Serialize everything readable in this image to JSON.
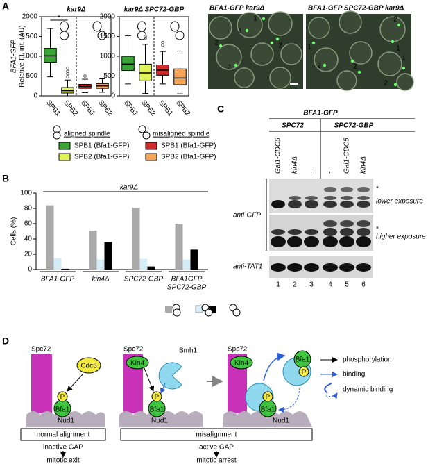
{
  "panel_labels": [
    "A",
    "B",
    "C",
    "D"
  ],
  "chart_data": [
    {
      "type": "box",
      "title": "kar9Δ",
      "y_label": [
        "BFA1-GFP",
        "Relative Fl. int. (AU)"
      ],
      "categories": [
        "SPB1",
        "SPB2",
        "SPB1",
        "SPB2"
      ],
      "colors": [
        "#3aa335",
        "#dff25a",
        "#d22b2b",
        "#f5a55a"
      ],
      "boxes": [
        {
          "whisker_low": 480,
          "q1": 850,
          "median": 1010,
          "q3": 1200,
          "whisker_high": 1700,
          "outliers": []
        },
        {
          "whisker_low": 0,
          "q1": 70,
          "median": 130,
          "q3": 210,
          "whisker_high": 400,
          "outliers": [
            480,
            560,
            620,
            700
          ]
        },
        {
          "whisker_low": 80,
          "q1": 190,
          "median": 240,
          "q3": 290,
          "whisker_high": 420,
          "outliers": [
            500
          ]
        },
        {
          "whisker_low": 90,
          "q1": 190,
          "median": 250,
          "q3": 310,
          "whisker_high": 430,
          "outliers": []
        }
      ],
      "significance": "*",
      "ylim": [
        0,
        2000
      ],
      "yticks": [
        0,
        500,
        1000,
        1500,
        2000
      ]
    },
    {
      "type": "box",
      "title": "kar9Δ SPC72-GBP",
      "categories": [
        "SPB1",
        "SPB2",
        "SPB1",
        "SPB2"
      ],
      "colors": [
        "#3aa335",
        "#dff25a",
        "#d22b2b",
        "#f5a55a"
      ],
      "boxes": [
        {
          "whisker_low": 300,
          "q1": 640,
          "median": 800,
          "q3": 1000,
          "whisker_high": 1520,
          "outliers": []
        },
        {
          "whisker_low": 60,
          "q1": 380,
          "median": 580,
          "q3": 800,
          "whisker_high": 1300,
          "outliers": [
            1450,
            1500
          ]
        },
        {
          "whisker_low": 300,
          "q1": 520,
          "median": 650,
          "q3": 780,
          "whisker_high": 1120,
          "outliers": [
            1280,
            1350
          ]
        },
        {
          "whisker_low": 50,
          "q1": 280,
          "median": 450,
          "q3": 680,
          "whisker_high": 1130,
          "outliers": []
        }
      ],
      "ylim": [
        0,
        2000
      ],
      "yticks": [
        0,
        500,
        1000,
        1500,
        2000
      ]
    },
    {
      "type": "bar",
      "title": "kar9Δ",
      "y_label": "Cells (%)",
      "categories": [
        "BFA1-GFP",
        "kin4Δ",
        "SPC72-GBP",
        [
          "BFA1GFP",
          "SPC72-GBP"
        ]
      ],
      "series": [
        {
          "color": "#aaaaaa",
          "values": [
            84,
            51,
            81,
            60
          ]
        },
        {
          "color": "#d3ecf5",
          "values": [
            15,
            13,
            14,
            13
          ]
        },
        {
          "color": "#000000",
          "values": [
            1,
            36,
            4,
            26
          ]
        }
      ],
      "ylim": [
        0,
        100
      ],
      "yticks": [
        0,
        20,
        40,
        60,
        80,
        100
      ]
    }
  ],
  "panel_a": {
    "legend": {
      "aligned": "aligned spindle",
      "misaligned": "misaligned spindle",
      "entries": [
        {
          "label": "SPB1 (Bfa1-GFP)",
          "color": "#3aa335"
        },
        {
          "label": "SPB2 (Bfa1-GFP)",
          "color": "#dff25a"
        },
        {
          "label": "SPB1 (Bfa1-GFP)",
          "color": "#d22b2b"
        },
        {
          "label": "SPB2 (Bfa1-GFP)",
          "color": "#f5a55a"
        }
      ]
    },
    "micrographs": [
      {
        "title": "BFA1-GFP kar9Δ",
        "markers": [
          "1",
          "1",
          "2",
          "2",
          "2"
        ]
      },
      {
        "title": "BFA1-GFP SPC72-GBP  kar9Δ",
        "markers": [
          "2",
          "1",
          "1",
          "2",
          "1",
          "2",
          "2"
        ]
      }
    ]
  },
  "panel_c": {
    "strain": "BFA1-GFP",
    "groups": [
      "SPC72",
      "SPC72-GBP"
    ],
    "lanes": [
      "Gal1-CDC5",
      "kin4Δ",
      "-",
      "-",
      "Gal1-CDC5",
      "kin4Δ"
    ],
    "lane_numbers": [
      1,
      2,
      3,
      4,
      5,
      6
    ],
    "antibodies": [
      "anti-GFP",
      "anti-TAT1"
    ],
    "exposures": [
      "lower exposure",
      "higher exposure"
    ],
    "markers": [
      "*",
      "*"
    ]
  },
  "panel_d": {
    "normal": {
      "spc72": "Spc72",
      "cdc5": "Cdc5",
      "p": "P",
      "bfa1": "Bfa1",
      "nud1": "Nud1",
      "condition": "normal alignment",
      "gap": "inactive GAP",
      "outcome": "mitotic exit"
    },
    "misaligned_early": {
      "spc72": "Spc72",
      "bmh1": "Bmh1",
      "kin4": "Kin4",
      "p": "P",
      "bfa1": "Bfa1",
      "nud1": "Nud1"
    },
    "misaligned_late": {
      "spc72": "Spc72",
      "kin4": "Kin4",
      "bfa1_free": "Bfa1",
      "p_free": "P",
      "p_bound": "P",
      "bfa1_bound": "Bfa1",
      "nud1": "Nud1"
    },
    "misaligned": {
      "condition": "misalignment",
      "gap": "active GAP",
      "outcome": "mitotic arrest"
    },
    "legend": [
      "phosphorylation",
      "binding",
      "dynamic binding"
    ]
  }
}
